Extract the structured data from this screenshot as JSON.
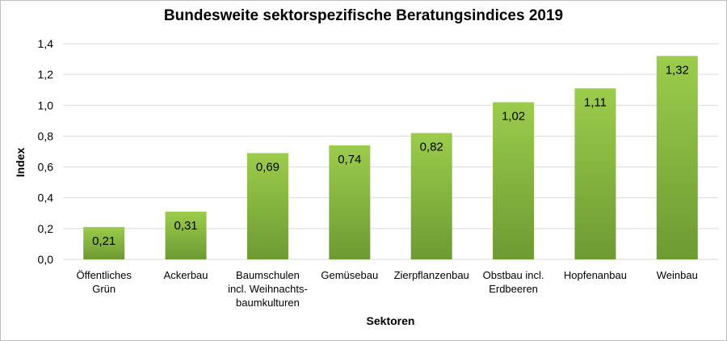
{
  "chart_data": {
    "type": "bar",
    "title": "Bundesweite sektorspezifische Beratungsindices 2019",
    "xlabel": "Sektoren",
    "ylabel": "Index",
    "ylim": [
      0,
      1.4
    ],
    "yticks": [
      "0,0",
      "0,2",
      "0,4",
      "0,6",
      "0,8",
      "1,0",
      "1,2",
      "1,4"
    ],
    "grid": true,
    "categories": [
      [
        "Öffentliches",
        "Grün"
      ],
      [
        "Ackerbau"
      ],
      [
        "Baumschulen",
        "incl. Weihnachts-",
        "baumkulturen"
      ],
      [
        "Gemüsebau"
      ],
      [
        "Zierpflanzenbau"
      ],
      [
        "Obstbau incl.",
        "Erdbeeren"
      ],
      [
        "Hopfenanbau"
      ],
      [
        "Weinbau"
      ]
    ],
    "values": [
      0.21,
      0.31,
      0.69,
      0.74,
      0.82,
      1.02,
      1.11,
      1.32
    ],
    "data_labels": [
      "0,21",
      "0,31",
      "0,69",
      "0,74",
      "0,82",
      "1,02",
      "1,11",
      "1,32"
    ],
    "colors": {
      "bar_top": "#9ccc4c",
      "bar_bottom": "#6e9a33",
      "grid": "#d9d9d9"
    }
  }
}
